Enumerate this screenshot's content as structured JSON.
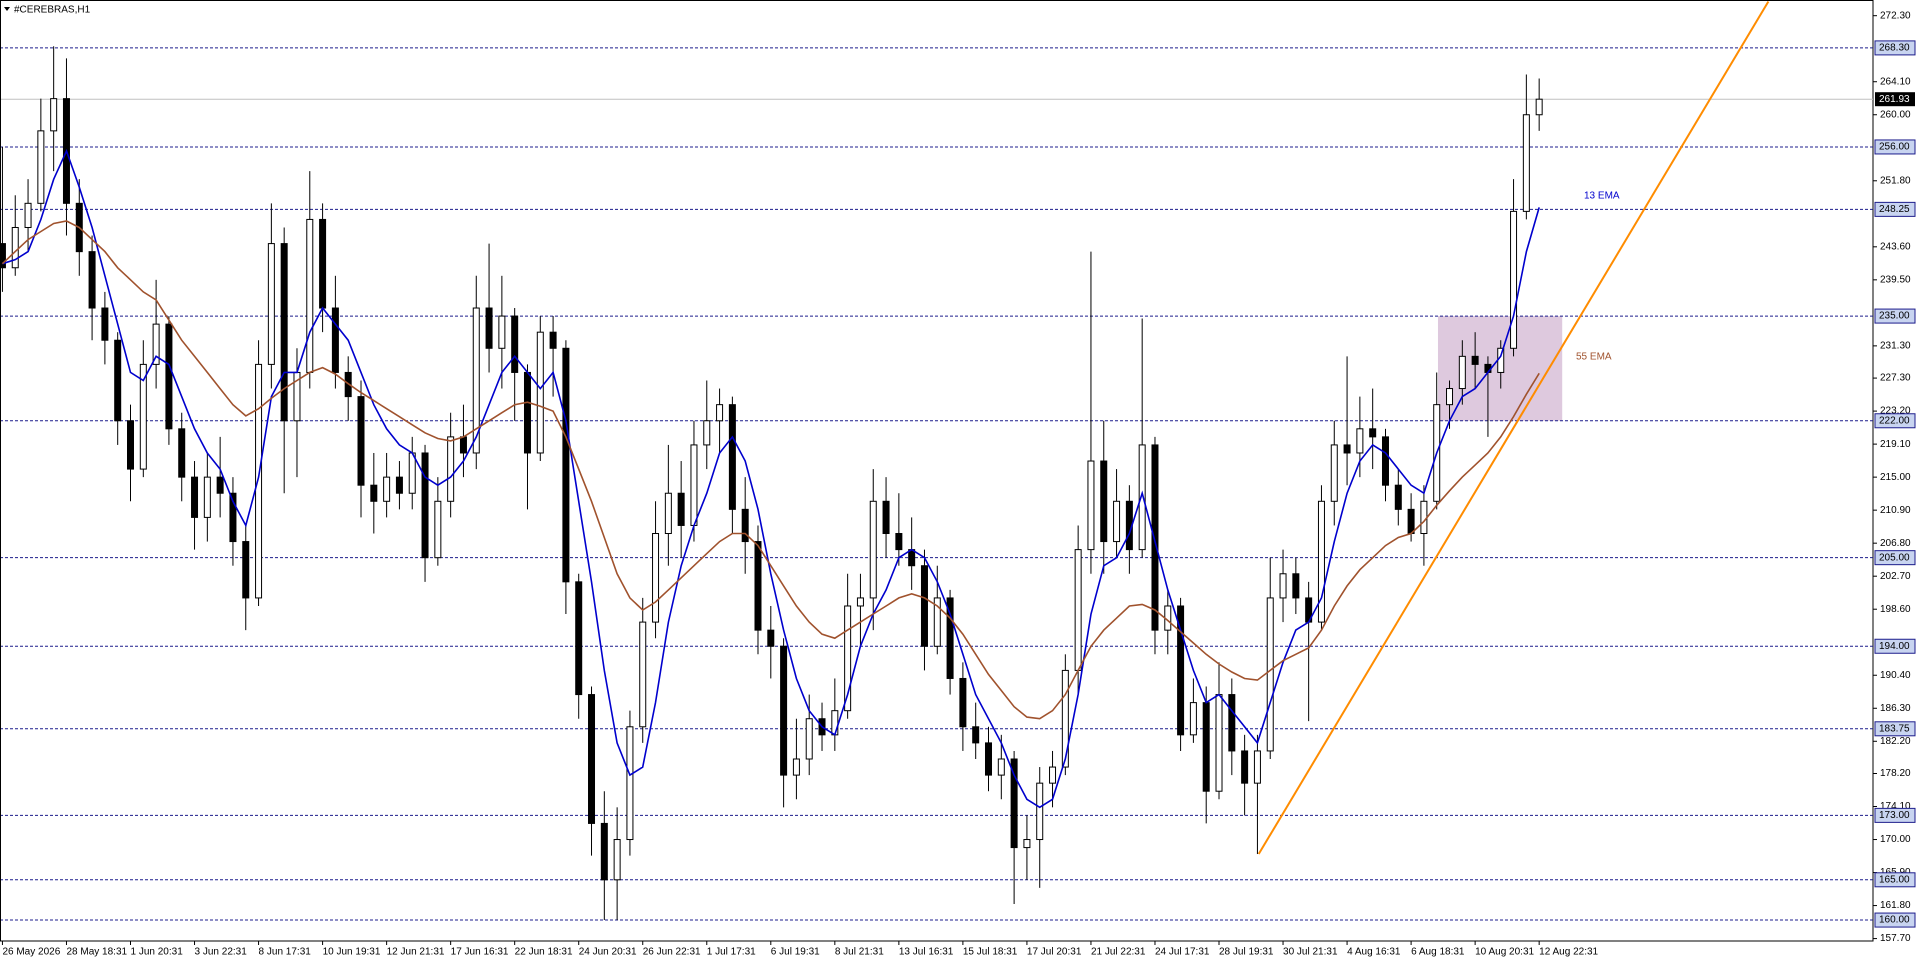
{
  "chart_data": {
    "type": "candlestick",
    "title": "#CEREBRAS,H1",
    "categories": [
      "26 May 2026",
      null,
      null,
      null,
      null,
      "28 May 18:31",
      null,
      null,
      null,
      null,
      "1 Jun 20:31",
      null,
      null,
      null,
      null,
      "3 Jun 22:31",
      null,
      null,
      null,
      null,
      "8 Jun 17:31",
      null,
      null,
      null,
      null,
      "10 Jun 19:31",
      null,
      null,
      null,
      null,
      "12 Jun 21:31",
      null,
      null,
      null,
      null,
      "17 Jun 16:31",
      null,
      null,
      null,
      null,
      "22 Jun 18:31",
      null,
      null,
      null,
      null,
      "24 Jun 20:31",
      null,
      null,
      null,
      null,
      "26 Jun 22:31",
      null,
      null,
      null,
      null,
      "1 Jul 17:31",
      null,
      null,
      null,
      null,
      "6 Jul 19:31",
      null,
      null,
      null,
      null,
      "8 Jul 21:31",
      null,
      null,
      null,
      null,
      "13 Jul 16:31",
      null,
      null,
      null,
      null,
      "15 Jul 18:31",
      null,
      null,
      null,
      null,
      "17 Jul 20:31",
      null,
      null,
      null,
      null,
      "21 Jul 22:31",
      null,
      null,
      null,
      null,
      "24 Jul 17:31",
      null,
      null,
      null,
      null,
      "28 Jul 19:31",
      null,
      null,
      null,
      null,
      "30 Jul 21:31",
      null,
      null,
      null,
      null,
      "4 Aug 16:31",
      null,
      null,
      null,
      null,
      "6 Aug 18:31",
      null,
      null,
      null,
      null,
      "10 Aug 20:31",
      null,
      null,
      null,
      null,
      "12 Aug 22:31"
    ],
    "open": [
      244,
      241,
      246,
      249,
      258,
      262,
      249,
      243,
      236,
      232,
      222,
      216,
      229,
      234,
      221,
      215,
      210,
      215,
      213,
      207,
      200,
      229,
      244,
      222,
      228,
      247,
      236,
      228,
      225,
      214,
      212,
      215,
      213,
      218,
      205,
      212,
      220,
      218,
      236,
      231,
      235,
      228,
      218,
      233,
      231,
      202,
      188,
      172,
      165,
      170,
      184,
      197,
      208,
      213,
      209,
      219,
      222,
      224,
      211,
      207,
      196,
      194,
      178,
      180,
      185,
      183,
      186,
      199,
      200,
      212,
      208,
      206,
      204,
      194,
      200,
      190,
      184,
      182,
      178,
      180,
      169,
      170,
      177,
      179,
      191,
      206,
      217,
      207,
      212,
      206,
      219,
      196,
      199,
      183,
      187,
      176,
      188,
      181,
      177,
      181,
      200,
      203,
      200,
      197,
      212,
      219,
      218,
      221,
      220,
      214,
      211,
      208,
      212,
      224,
      226,
      230,
      229,
      228,
      231,
      248,
      260
    ],
    "high": [
      256,
      250,
      252,
      262,
      268.5,
      267,
      252,
      245,
      238,
      233,
      224,
      232,
      239.5,
      235,
      223,
      217,
      218,
      220,
      215,
      209,
      232,
      249,
      246,
      231,
      253,
      249,
      240,
      230,
      227,
      218,
      218,
      217,
      220,
      219,
      215,
      223,
      224,
      240,
      244,
      240,
      236,
      229,
      235,
      235,
      232,
      203,
      189,
      176,
      174,
      186,
      200,
      212,
      219,
      217,
      222,
      227,
      226,
      225,
      215,
      209,
      199,
      195,
      185,
      188,
      187,
      190,
      203,
      203,
      216,
      215,
      213,
      210,
      206,
      204,
      201,
      192,
      187,
      184,
      183,
      181,
      173,
      179,
      181,
      193,
      209,
      243,
      222,
      216,
      214,
      234.7,
      220,
      201,
      200,
      190,
      189,
      192,
      190,
      183,
      183,
      205,
      206,
      205,
      202,
      214,
      222,
      230,
      225,
      226,
      221,
      216,
      213,
      214,
      228,
      227,
      232,
      233,
      230,
      232,
      252,
      265,
      264.5
    ],
    "low": [
      238,
      240,
      243,
      248,
      253,
      245,
      240,
      232,
      229,
      219,
      212,
      215,
      226,
      219,
      212,
      206,
      207,
      210,
      204,
      196,
      199,
      226,
      213,
      215,
      226,
      233,
      226,
      222,
      210,
      208,
      210,
      211,
      211,
      202,
      204,
      210,
      215,
      216,
      228,
      226,
      222,
      211,
      217,
      225,
      198,
      185,
      168,
      160,
      160,
      168,
      182,
      195,
      204,
      205,
      207,
      216,
      218,
      208,
      203,
      193,
      190,
      174,
      175,
      178,
      181,
      181,
      185,
      194,
      196,
      205,
      204,
      201,
      191,
      193,
      188,
      181,
      180,
      176,
      175,
      162,
      165,
      164,
      174,
      178,
      188,
      203,
      203,
      205,
      203,
      205,
      193,
      193,
      181,
      182,
      172,
      175,
      178,
      173,
      168.2,
      180,
      197,
      198,
      184.7,
      196,
      209,
      214,
      215,
      216,
      212,
      209,
      207,
      204,
      211,
      221,
      224,
      226,
      220,
      226,
      230,
      247,
      258
    ],
    "close": [
      241,
      246,
      249,
      258,
      262,
      249,
      243,
      236,
      232,
      222,
      216,
      229,
      234,
      221,
      215,
      210,
      215,
      213,
      207,
      200,
      229,
      244,
      222,
      228,
      247,
      236,
      228,
      225,
      214,
      212,
      215,
      213,
      218,
      205,
      212,
      220,
      218,
      236,
      231,
      235,
      228,
      218,
      233,
      231,
      202,
      188,
      172,
      165,
      170,
      184,
      197,
      208,
      213,
      209,
      219,
      222,
      224,
      211,
      207,
      196,
      194,
      178,
      180,
      185,
      183,
      186,
      199,
      200,
      212,
      208,
      206,
      204,
      194,
      200,
      190,
      184,
      182,
      178,
      180,
      169,
      170,
      177,
      179,
      191,
      206,
      217,
      207,
      212,
      206,
      219,
      196,
      199,
      183,
      187,
      176,
      188,
      181,
      177,
      181,
      200,
      203,
      200,
      197,
      212,
      219,
      218,
      221,
      220,
      214,
      211,
      208,
      212,
      224,
      226,
      230,
      229,
      228,
      231,
      248,
      260,
      261.93
    ],
    "ema": [
      {
        "name": "13 EMA",
        "color": "#0000cd",
        "values": [
          241.5,
          242,
          243,
          247,
          252,
          255.5,
          251,
          246,
          240,
          234,
          228,
          227,
          230,
          229,
          225,
          221,
          218,
          216,
          212,
          209,
          215,
          225,
          228,
          228,
          233,
          236,
          234,
          232,
          228,
          224,
          221,
          219,
          218,
          215,
          214,
          215,
          217,
          220,
          224,
          228,
          230,
          228,
          226,
          228,
          222,
          212,
          202,
          191,
          182,
          178,
          179,
          187,
          197,
          204,
          209,
          213,
          218,
          220,
          217,
          211,
          203,
          196,
          190,
          186,
          184,
          183,
          188,
          194,
          198,
          201,
          205,
          206,
          205,
          202,
          198,
          193,
          188,
          185,
          182,
          178,
          175,
          174,
          175,
          180,
          188,
          198,
          204,
          205,
          208,
          213,
          207,
          201,
          196,
          191,
          187,
          188,
          186,
          184,
          182,
          187,
          192,
          196,
          197,
          200,
          207,
          213,
          217,
          219,
          218,
          216,
          214,
          213,
          218,
          222,
          225,
          226,
          228,
          230,
          235,
          243,
          248.5
        ]
      },
      {
        "name": "55 EMA",
        "color": "#a0522d",
        "values": [
          241.5,
          243,
          244.5,
          245.5,
          246.5,
          246.8,
          246,
          244.5,
          243,
          241,
          239.5,
          238,
          237,
          234.5,
          232,
          230,
          228,
          226,
          224,
          222.6,
          223.5,
          224.8,
          226,
          227,
          228,
          228.6,
          227.8,
          226.6,
          225.5,
          224.5,
          223.5,
          222.5,
          221.5,
          220.5,
          219.8,
          219.5,
          220,
          221,
          222,
          223,
          224,
          224.3,
          223.8,
          223.2,
          220,
          216,
          212,
          207.5,
          203,
          200,
          198.5,
          199.5,
          201,
          202.5,
          204,
          205.5,
          207,
          208,
          208,
          206.5,
          204,
          201.5,
          199,
          197,
          195.5,
          195,
          196,
          197,
          198,
          199,
          200,
          200.5,
          200,
          199,
          197.5,
          195.5,
          193,
          190.5,
          188.5,
          186.5,
          185.2,
          185,
          186,
          188,
          191,
          194,
          196,
          197.5,
          199,
          199.2,
          198.5,
          197.2,
          195.8,
          194.4,
          193,
          191.8,
          190.8,
          190,
          189.8,
          191,
          192.2,
          193,
          193.8,
          196,
          199,
          201.5,
          203.5,
          205,
          206.5,
          207.5,
          208,
          209.5,
          211.5,
          213.3,
          215,
          216.5,
          218,
          220,
          222.5,
          225.3,
          227.9
        ]
      }
    ],
    "ylim": [
      157.4,
      274.0
    ],
    "yticks": [
      {
        "value": 272.3,
        "label": "272.30"
      },
      {
        "value": 264.1,
        "label": "264.10"
      },
      {
        "value": 260,
        "label": "260.00"
      },
      {
        "value": 251.8,
        "label": "251.80"
      },
      {
        "value": 243.6,
        "label": "243.60"
      },
      {
        "value": 239.5,
        "label": "239.50"
      },
      {
        "value": 231.3,
        "label": "231.30"
      },
      {
        "value": 227.3,
        "label": "227.30"
      },
      {
        "value": 223.2,
        "label": "223.20"
      },
      {
        "value": 219.1,
        "label": "219.10"
      },
      {
        "value": 215,
        "label": "215.00"
      },
      {
        "value": 210.9,
        "label": "210.90"
      },
      {
        "value": 206.8,
        "label": "206.80"
      },
      {
        "value": 202.7,
        "label": "202.70"
      },
      {
        "value": 198.6,
        "label": "198.60"
      },
      {
        "value": 190.4,
        "label": "190.40"
      },
      {
        "value": 186.3,
        "label": "186.30"
      },
      {
        "value": 182.2,
        "label": "182.20"
      },
      {
        "value": 178.2,
        "label": "178.20"
      },
      {
        "value": 174.1,
        "label": "174.10"
      },
      {
        "value": 170,
        "label": "170.00"
      },
      {
        "value": 165.9,
        "label": "165.90"
      },
      {
        "value": 161.8,
        "label": "161.80"
      },
      {
        "value": 157.7,
        "label": "157.70"
      }
    ],
    "levels": [
      {
        "value": 268.3,
        "label": "268.30"
      },
      {
        "value": 256,
        "label": "256.00"
      },
      248.25,
      {
        "value": 235,
        "label": "235.00"
      },
      {
        "value": 222,
        "label": "222.00"
      },
      {
        "value": 205,
        "label": "205.00"
      },
      {
        "value": 194,
        "label": "194.00"
      },
      183.75,
      {
        "value": 173,
        "label": "173.00"
      },
      {
        "value": 165,
        "label": "165.00"
      },
      {
        "value": 160,
        "label": "160.00"
      }
    ],
    "level_color": "#1c1c8c",
    "current_price": 261.93,
    "trendline": {
      "color": "#ff8c00",
      "x": [
        98.1,
        137.9
      ],
      "y": [
        168.2,
        274.06
      ]
    },
    "zone": {
      "color": "#d8bfd8",
      "x": [
        112.1,
        121.8
      ],
      "y": [
        222,
        235
      ]
    }
  }
}
